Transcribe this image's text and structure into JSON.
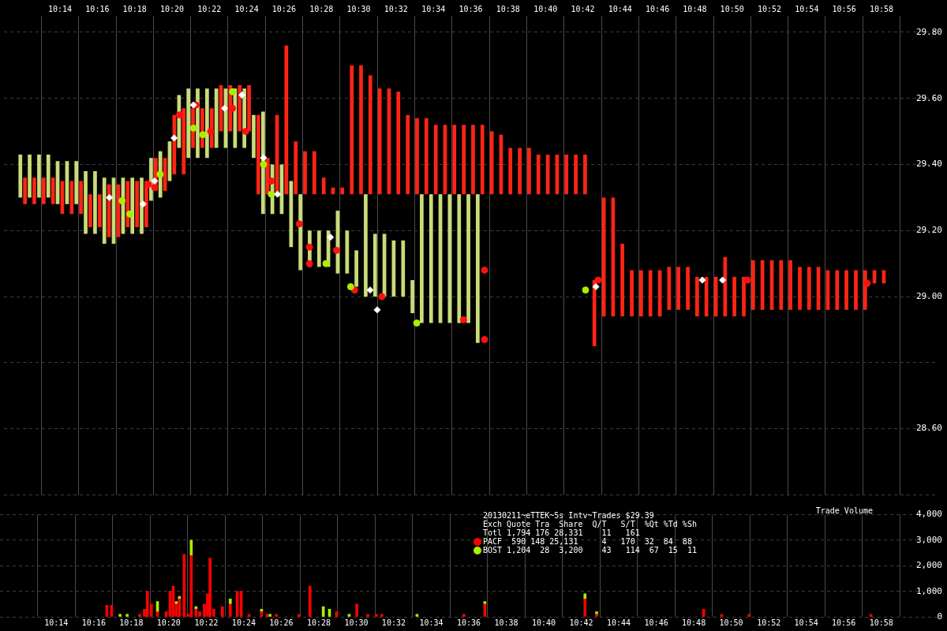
{
  "chart_data": [
    {
      "type": "bar",
      "grid": true,
      "xlim": [
        10.1833,
        11.0167
      ],
      "ylim": [
        28.4,
        29.85
      ],
      "xticks": [
        {
          "value": 10.2333,
          "label": "10:14"
        },
        {
          "value": 10.2667,
          "label": "10:16"
        },
        {
          "value": 10.3,
          "label": "10:18"
        },
        {
          "value": 10.3333,
          "label": "10:20"
        },
        {
          "value": 10.3667,
          "label": "10:22"
        },
        {
          "value": 10.4,
          "label": "10:24"
        },
        {
          "value": 10.4333,
          "label": "10:26"
        },
        {
          "value": 10.4667,
          "label": "10:28"
        },
        {
          "value": 10.5,
          "label": "10:30"
        },
        {
          "value": 10.5333,
          "label": "10:32"
        },
        {
          "value": 10.5667,
          "label": "10:34"
        },
        {
          "value": 10.6,
          "label": "10:36"
        },
        {
          "value": 10.6333,
          "label": "10:38"
        },
        {
          "value": 10.6667,
          "label": "10:40"
        },
        {
          "value": 10.7,
          "label": "10:42"
        },
        {
          "value": 10.7333,
          "label": "10:44"
        },
        {
          "value": 10.7667,
          "label": "10:46"
        },
        {
          "value": 10.8,
          "label": "10:48"
        },
        {
          "value": 10.8333,
          "label": "10:50"
        },
        {
          "value": 10.8667,
          "label": "10:52"
        },
        {
          "value": 10.9,
          "label": "10:54"
        },
        {
          "value": 10.9333,
          "label": "10:56"
        },
        {
          "value": 10.9667,
          "label": "10:58"
        }
      ],
      "yticks": [
        {
          "value": 28.4,
          "label": null
        },
        {
          "value": 28.6,
          "label": "28.60"
        },
        {
          "value": 28.8,
          "label": null
        },
        {
          "value": 29,
          "label": "29.00"
        },
        {
          "value": 29.2,
          "label": "29.20"
        },
        {
          "value": 29.4,
          "label": "29.40"
        },
        {
          "value": 29.6,
          "label": "29.60"
        },
        {
          "value": 29.8,
          "label": "29.80"
        }
      ],
      "x": [
        10.2,
        10.2083,
        10.2167,
        10.225,
        10.2333,
        10.2417,
        10.25,
        10.2583,
        10.2667,
        10.275,
        10.2833,
        10.2917,
        10.3,
        10.3083,
        10.3167,
        10.325,
        10.3333,
        10.3417,
        10.35,
        10.3583,
        10.3667,
        10.375,
        10.3833,
        10.3917,
        10.4,
        10.4083,
        10.4167,
        10.425,
        10.4333,
        10.4417,
        10.45,
        10.4583,
        10.4667,
        10.475,
        10.4833,
        10.4917,
        10.5,
        10.5083,
        10.5167,
        10.525,
        10.5333,
        10.5417,
        10.55,
        10.5583,
        10.5667,
        10.575,
        10.5833,
        10.5917,
        10.6,
        10.6083,
        10.6167,
        10.625,
        10.6333,
        10.6417,
        10.65,
        10.6583,
        10.6667,
        10.675,
        10.6833,
        10.6917,
        10.7,
        10.7083,
        10.7167,
        10.725,
        10.7333,
        10.7417,
        10.75,
        10.7583,
        10.7667,
        10.775,
        10.7833,
        10.7917,
        10.8,
        10.8083,
        10.8167,
        10.825,
        10.8333,
        10.8417,
        10.85,
        10.8583,
        10.8667,
        10.875,
        10.8833,
        10.8917,
        10.9,
        10.9083,
        10.9167,
        10.925,
        10.9333,
        10.9417,
        10.95,
        10.9583,
        10.9667
      ],
      "series": [
        {
          "color": "#c8dc78",
          "base": [
            29.3,
            29.3,
            29.3,
            29.3,
            29.28,
            29.28,
            29.28,
            29.19,
            29.19,
            29.16,
            29.16,
            29.19,
            29.19,
            29.19,
            29.29,
            29.3,
            29.35,
            29.45,
            29.42,
            29.42,
            29.42,
            29.45,
            29.45,
            29.45,
            29.45,
            29.42,
            29.25,
            29.25,
            29.25,
            29.15,
            29.08,
            29.09,
            29.09,
            29.09,
            29.07,
            29.07,
            29.03,
            29.0,
            29.0,
            29.0,
            29.0,
            29.0,
            28.95,
            28.92,
            28.92,
            28.92,
            28.92,
            28.92,
            28.92,
            28.86,
            null,
            null,
            null,
            null,
            null,
            null,
            null,
            null,
            null,
            null,
            null,
            null,
            null,
            null,
            null,
            null,
            null,
            null,
            null,
            null,
            null,
            null,
            null,
            null,
            null,
            null,
            null,
            null,
            null,
            null,
            null,
            null,
            null,
            null,
            null,
            null,
            null,
            null,
            null,
            null,
            null,
            null,
            null
          ],
          "values": [
            0.13,
            0.13,
            0.13,
            0.13,
            0.13,
            0.13,
            0.13,
            0.19,
            0.19,
            0.2,
            0.2,
            0.17,
            0.17,
            0.17,
            0.13,
            0.14,
            0.12,
            0.16,
            0.21,
            0.21,
            0.21,
            0.18,
            0.18,
            0.18,
            0.18,
            0.13,
            0.31,
            0.15,
            0.15,
            0.2,
            0.23,
            0.11,
            0.11,
            0.11,
            0.19,
            0.13,
            0.11,
            0.31,
            0.19,
            0.19,
            0.17,
            0.17,
            0.1,
            0.39,
            0.39,
            0.39,
            0.39,
            0.39,
            0.39,
            0.45,
            null,
            null,
            null,
            null,
            null,
            null,
            null,
            null,
            null,
            null,
            null,
            null,
            null,
            null,
            null,
            null,
            null,
            null,
            null,
            null,
            null,
            null,
            null,
            null,
            null,
            null,
            null,
            null,
            null,
            null,
            null,
            null,
            null,
            null,
            null,
            null,
            null,
            null,
            null,
            null,
            null,
            null,
            null
          ]
        },
        {
          "color": "#ff2414",
          "base": [
            29.28,
            29.28,
            29.28,
            29.28,
            29.25,
            29.25,
            29.25,
            29.21,
            29.21,
            29.18,
            29.18,
            29.21,
            29.21,
            29.21,
            29.32,
            29.32,
            29.37,
            29.37,
            29.45,
            29.45,
            29.45,
            29.5,
            29.5,
            29.5,
            29.5,
            29.31,
            29.31,
            29.31,
            29.31,
            29.31,
            29.31,
            29.31,
            29.31,
            29.31,
            29.31,
            29.31,
            29.31,
            29.31,
            29.31,
            29.31,
            29.31,
            29.31,
            29.31,
            29.31,
            29.31,
            29.31,
            29.31,
            29.31,
            29.31,
            29.31,
            29.31,
            29.31,
            29.31,
            29.31,
            29.31,
            29.31,
            29.31,
            29.31,
            29.31,
            29.31,
            29.31,
            28.85,
            28.94,
            28.94,
            28.94,
            28.94,
            28.94,
            28.94,
            28.94,
            28.96,
            28.96,
            28.96,
            28.94,
            28.94,
            28.94,
            28.94,
            28.94,
            28.94,
            28.96,
            28.96,
            28.96,
            28.96,
            28.96,
            28.96,
            28.96,
            28.96,
            28.96,
            28.96,
            28.96,
            28.96,
            28.96,
            29.04,
            29.04
          ],
          "values": [
            0.08,
            0.08,
            0.08,
            0.08,
            0.1,
            0.1,
            0.1,
            0.1,
            0.1,
            0.16,
            0.16,
            0.14,
            0.14,
            0.14,
            0.1,
            0.1,
            0.18,
            0.2,
            0.12,
            0.12,
            0.12,
            0.14,
            0.14,
            0.14,
            0.14,
            0.24,
            0.11,
            0.24,
            0.45,
            0.16,
            0.13,
            0.13,
            0.05,
            0.02,
            0.02,
            0.39,
            0.39,
            0.36,
            0.32,
            0.32,
            0.31,
            0.24,
            0.23,
            0.23,
            0.21,
            0.21,
            0.21,
            0.21,
            0.21,
            0.21,
            0.19,
            0.18,
            0.14,
            0.14,
            0.14,
            0.12,
            0.12,
            0.12,
            0.12,
            0.12,
            0.12,
            0.2,
            0.36,
            0.36,
            0.22,
            0.14,
            0.14,
            0.14,
            0.14,
            0.13,
            0.13,
            0.13,
            0.12,
            0.12,
            0.12,
            0.18,
            0.12,
            0.12,
            0.15,
            0.15,
            0.15,
            0.15,
            0.15,
            0.13,
            0.13,
            0.13,
            0.12,
            0.12,
            0.12,
            0.12,
            0.12,
            0.04,
            0.04
          ]
        },
        {
          "type": "scatter",
          "marker": "circle",
          "color": "#ff1010",
          "x": [
            10.3123,
            10.3178,
            10.34,
            10.3547,
            10.3678,
            10.3873,
            10.3991,
            10.422,
            10.447,
            10.456,
            10.456,
            10.4803,
            10.4963,
            10.5207,
            10.5935,
            10.6123,
            10.6123,
            10.7137,
            10.847,
            10.954
          ],
          "values": [
            29.34,
            29.33,
            29.55,
            29.58,
            29.5,
            29.57,
            29.5,
            29.35,
            29.22,
            29.15,
            29.1,
            29.14,
            29.02,
            29.0,
            28.93,
            29.08,
            28.87,
            29.05,
            29.05,
            29.04
          ]
        },
        {
          "type": "scatter",
          "marker": "circle",
          "color": "#aaee00",
          "x": [
            10.2887,
            10.2957,
            10.3227,
            10.3525,
            10.3608,
            10.3873,
            10.415,
            10.422,
            10.4707,
            10.4928,
            10.5518,
            10.7025
          ],
          "values": [
            29.29,
            29.25,
            29.37,
            29.51,
            29.49,
            29.62,
            29.4,
            29.31,
            29.1,
            29.03,
            28.92,
            29.02
          ]
        },
        {
          "type": "scatter",
          "marker": "diamond",
          "color": "#ffffff",
          "x": [
            10.2775,
            10.3075,
            10.3178,
            10.3352,
            10.3525,
            10.3803,
            10.3957,
            10.415,
            10.4275,
            10.4748,
            10.5102,
            10.5165,
            10.7117,
            10.8067,
            10.8248
          ],
          "values": [
            29.3,
            29.28,
            29.35,
            29.48,
            29.58,
            29.57,
            29.61,
            29.42,
            29.31,
            29.18,
            29.02,
            28.96,
            29.03,
            29.05,
            29.05
          ]
        }
      ]
    },
    {
      "type": "bar",
      "title": "Trade Volume",
      "stacked": true,
      "grid": true,
      "legend": "top",
      "legend_title": "20130211~eTTEK~5s Intv~Trades $29.39",
      "annotations": [
        "Exch Quote Tra  Share  Q/T   S/T  %Qt %Td %Sh",
        "Totl 1,794 176 28,331    11   161",
        "  590 148 25,131     4   170  32  84  88",
        " 1,204  28  3,200    43   114  67  15  11"
      ],
      "xlim": [
        10.1833,
        11.0167
      ],
      "ylim": [
        0,
        4000
      ],
      "xticks": [
        {
          "value": 10.2333,
          "label": "10:14"
        },
        {
          "value": 10.2667,
          "label": "10:16"
        },
        {
          "value": 10.3,
          "label": "10:18"
        },
        {
          "value": 10.3333,
          "label": "10:20"
        },
        {
          "value": 10.3667,
          "label": "10:22"
        },
        {
          "value": 10.4,
          "label": "10:24"
        },
        {
          "value": 10.4333,
          "label": "10:26"
        },
        {
          "value": 10.4667,
          "label": "10:28"
        },
        {
          "value": 10.5,
          "label": "10:30"
        },
        {
          "value": 10.5333,
          "label": "10:32"
        },
        {
          "value": 10.5667,
          "label": "10:34"
        },
        {
          "value": 10.6,
          "label": "10:36"
        },
        {
          "value": 10.6333,
          "label": "10:38"
        },
        {
          "value": 10.6667,
          "label": "10:40"
        },
        {
          "value": 10.7,
          "label": "10:42"
        },
        {
          "value": 10.7333,
          "label": "10:44"
        },
        {
          "value": 10.7667,
          "label": "10:46"
        },
        {
          "value": 10.8,
          "label": "10:48"
        },
        {
          "value": 10.8333,
          "label": "10:50"
        },
        {
          "value": 10.8667,
          "label": "10:52"
        },
        {
          "value": 10.9,
          "label": "10:54"
        },
        {
          "value": 10.9333,
          "label": "10:56"
        },
        {
          "value": 10.9667,
          "label": "10:58"
        }
      ],
      "yticks": [
        {
          "value": 0,
          "label": "0"
        },
        {
          "value": 1000,
          "label": "1,000"
        },
        {
          "value": 2000,
          "label": "2,000"
        },
        {
          "value": 3000,
          "label": "3,000"
        },
        {
          "value": 4000,
          "label": "4,000"
        }
      ],
      "x": [
        10.2783,
        10.2825,
        10.29,
        10.2963,
        10.3075,
        10.3117,
        10.3143,
        10.3178,
        10.3233,
        10.331,
        10.3345,
        10.3373,
        10.34,
        10.3428,
        10.347,
        10.3505,
        10.3533,
        10.3575,
        10.3608,
        10.365,
        10.3678,
        10.37,
        10.3733,
        10.381,
        10.388,
        10.3942,
        10.3977,
        10.4047,
        10.4158,
        10.4207,
        10.4233,
        10.429,
        10.4492,
        10.4588,
        10.4707,
        10.4762,
        10.4825,
        10.4937,
        10.5005,
        10.5102,
        10.5178,
        10.5227,
        10.554,
        10.5957,
        10.6143,
        10.7033,
        10.7137,
        10.8088,
        10.8248,
        10.8492,
        10.9575
      ],
      "series": [
        {
          "name": "PACF",
          "color": "#ff0000",
          "values": [
            450,
            450,
            null,
            null,
            100,
            300,
            1000,
            500,
            200,
            200,
            1000,
            1200,
            500,
            700,
            2450,
            100,
            2400,
            300,
            200,
            500,
            900,
            2300,
            300,
            400,
            500,
            1000,
            1000,
            100,
            200,
            100,
            null,
            100,
            100,
            1200,
            null,
            null,
            200,
            null,
            500,
            100,
            100,
            100,
            null,
            100,
            500,
            700,
            100,
            300,
            100,
            100,
            100
          ]
        },
        {
          "name": "BOST",
          "color": "#aaee00",
          "values": [
            null,
            null,
            100,
            100,
            null,
            null,
            null,
            null,
            400,
            null,
            null,
            null,
            100,
            100,
            null,
            null,
            600,
            100,
            null,
            null,
            null,
            null,
            null,
            null,
            200,
            null,
            null,
            null,
            100,
            null,
            100,
            null,
            null,
            null,
            400,
            300,
            null,
            100,
            null,
            null,
            null,
            null,
            100,
            null,
            100,
            200,
            100,
            null,
            null,
            null,
            null
          ]
        }
      ]
    }
  ]
}
